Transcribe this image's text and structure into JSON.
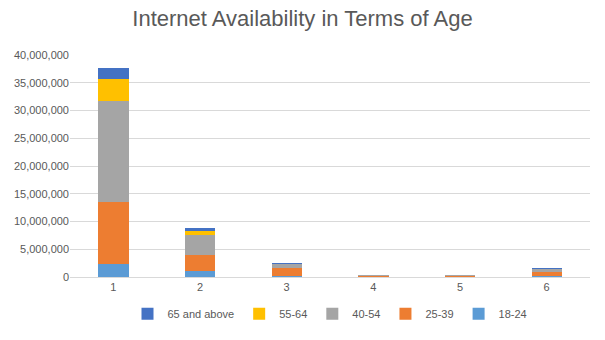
{
  "chart_data": {
    "type": "bar",
    "title": "Internet Availability in Terms of Age",
    "categories": [
      "1",
      "2",
      "3",
      "4",
      "5",
      "6"
    ],
    "series": [
      {
        "name": "18-24",
        "color": "#5b9bd5",
        "values": [
          2400000,
          1000000,
          200000,
          30000,
          50000,
          200000
        ]
      },
      {
        "name": "25-39",
        "color": "#ed7d31",
        "values": [
          11100000,
          2900000,
          1400000,
          200000,
          200000,
          700000
        ]
      },
      {
        "name": "40-54",
        "color": "#a5a5a5",
        "values": [
          18300000,
          3600000,
          700000,
          80000,
          100000,
          500000
        ]
      },
      {
        "name": "55-64",
        "color": "#ffc000",
        "values": [
          3800000,
          700000,
          100000,
          20000,
          30000,
          100000
        ]
      },
      {
        "name": "65 and above",
        "color": "#4472c4",
        "values": [
          2000000,
          600000,
          50000,
          20000,
          20000,
          50000
        ]
      }
    ],
    "stacked": true,
    "ylim": [
      0,
      40000000
    ],
    "yticks": [
      0,
      {
        "value": 5000000,
        "label": "5,000,000"
      },
      {
        "value": 10000000,
        "label": "10,000,000"
      },
      {
        "value": 15000000,
        "label": "15,000,000"
      },
      {
        "value": 20000000,
        "label": "20,000,000"
      },
      {
        "value": 25000000,
        "label": "25,000,000"
      },
      {
        "value": 30000000,
        "label": "30,000,000"
      },
      {
        "value": 35000000,
        "label": "35,000,000"
      },
      {
        "value": 40000000,
        "label": "40,000,000"
      }
    ],
    "grid": true,
    "legend": "bottom"
  }
}
